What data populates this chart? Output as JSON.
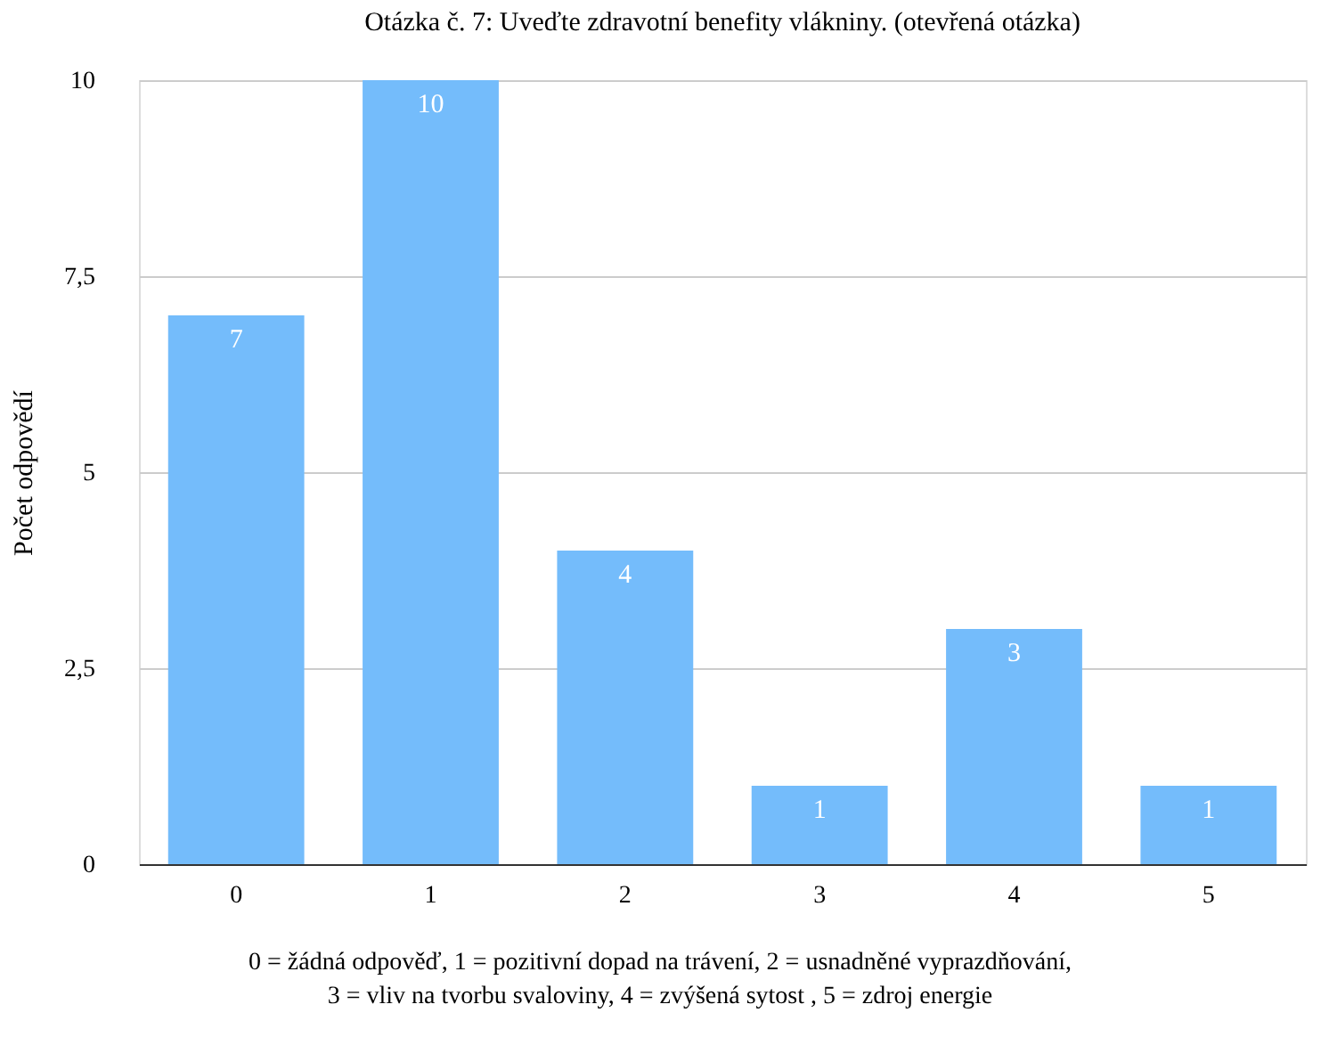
{
  "chart_data": {
    "type": "bar",
    "title": "Otázka č. 7: Uveďte zdravotní benefity vlákniny. (otevřená otázka)",
    "ylabel": "Počet odpovědí",
    "categories": [
      "0",
      "1",
      "2",
      "3",
      "4",
      "5"
    ],
    "values": [
      7,
      10,
      4,
      1,
      3,
      1
    ],
    "color": "#74bcfb",
    "ylim": [
      0,
      10
    ],
    "yticks": [
      0,
      {
        "value": 2.5,
        "label": "2,5"
      },
      5,
      {
        "value": 7.5,
        "label": "7,5"
      },
      10
    ],
    "grid": "y",
    "data_labels": true,
    "annotations": [
      "0 = žádná odpověď, 1 = pozitivní dopad na trávení, 2 = usnadněné vyprazdňování,",
      "3 = vliv na tvorbu svaloviny, 4 = zvýšená sytost , 5 = zdroj energie"
    ]
  }
}
